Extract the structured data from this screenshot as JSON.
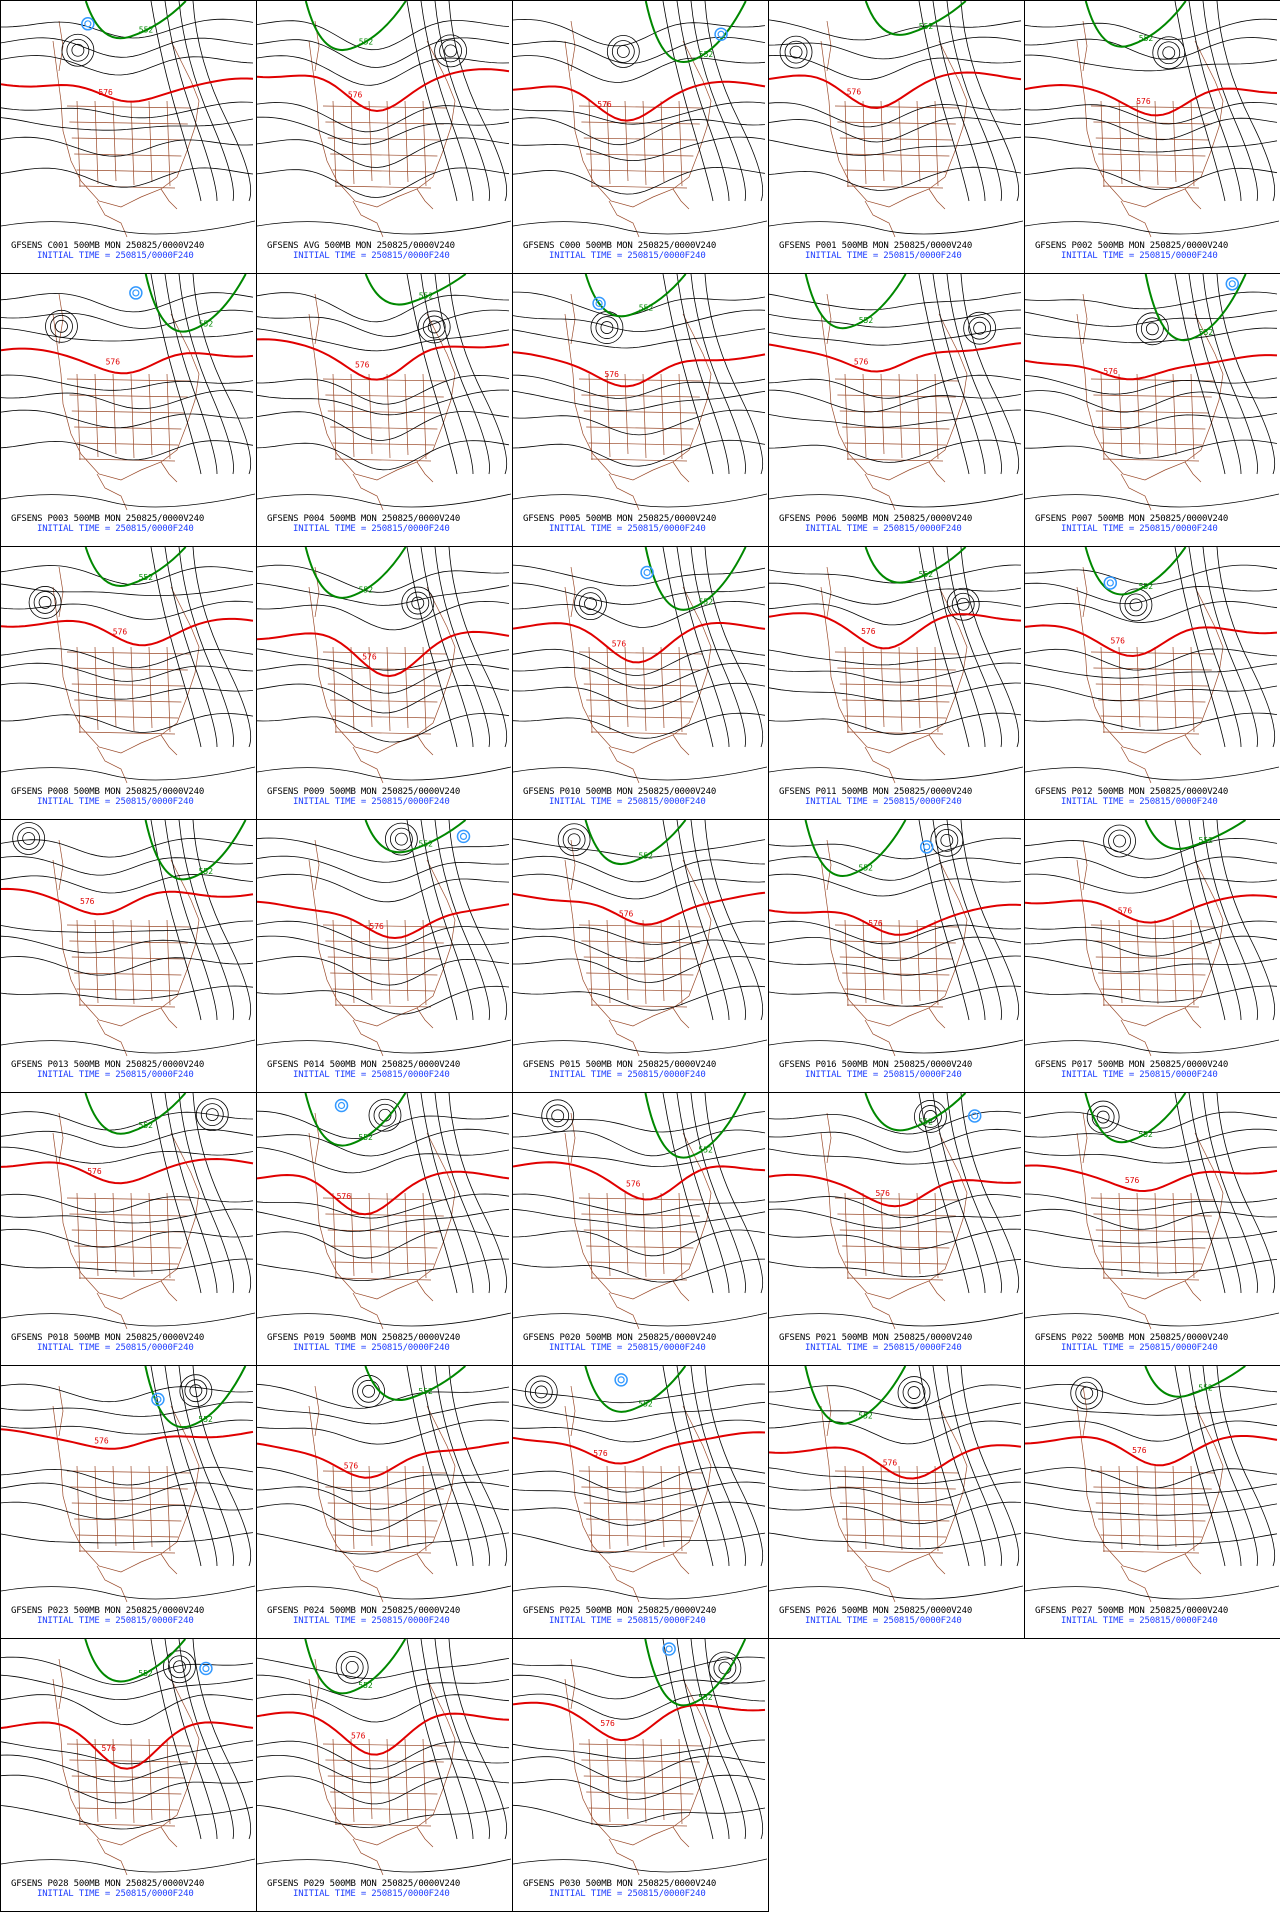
{
  "page": {
    "background": "#ffffff"
  },
  "colors": {
    "height_contour": "#000000",
    "contour_576": "#e00000",
    "contour_552": "#008800",
    "low_center": "#3399ff",
    "map_boundaries": "#9a4a2a",
    "caption_line1": "#000000",
    "caption_line2": "#1f3fff"
  },
  "contour_labels": {
    "red": "576",
    "green": "552"
  },
  "panels": [
    {
      "line1": "GFSENS C001 500MB MON 250825/0000V240",
      "line2": "INITIAL TIME = 250815/0000F240"
    },
    {
      "line1": "GFSENS AVG 500MB MON 250825/0000V240",
      "line2": "INITIAL TIME = 250815/0000F240"
    },
    {
      "line1": "GFSENS C000 500MB MON 250825/0000V240",
      "line2": "INITIAL TIME = 250815/0000F240"
    },
    {
      "line1": "GFSENS P001 500MB MON 250825/0000V240",
      "line2": "INITIAL TIME = 250815/0000F240"
    },
    {
      "line1": "GFSENS P002 500MB MON 250825/0000V240",
      "line2": "INITIAL TIME = 250815/0000F240"
    },
    {
      "line1": "GFSENS P003 500MB MON 250825/0000V240",
      "line2": "INITIAL TIME = 250815/0000F240"
    },
    {
      "line1": "GFSENS P004 500MB MON 250825/0000V240",
      "line2": "INITIAL TIME = 250815/0000F240"
    },
    {
      "line1": "GFSENS P005 500MB MON 250825/0000V240",
      "line2": "INITIAL TIME = 250815/0000F240"
    },
    {
      "line1": "GFSENS P006 500MB MON 250825/0000V240",
      "line2": "INITIAL TIME = 250815/0000F240"
    },
    {
      "line1": "GFSENS P007 500MB MON 250825/0000V240",
      "line2": "INITIAL TIME = 250815/0000F240"
    },
    {
      "line1": "GFSENS P008 500MB MON 250825/0000V240",
      "line2": "INITIAL TIME = 250815/0000F240"
    },
    {
      "line1": "GFSENS P009 500MB MON 250825/0000V240",
      "line2": "INITIAL TIME = 250815/0000F240"
    },
    {
      "line1": "GFSENS P010 500MB MON 250825/0000V240",
      "line2": "INITIAL TIME = 250815/0000F240"
    },
    {
      "line1": "GFSENS P011 500MB MON 250825/0000V240",
      "line2": "INITIAL TIME = 250815/0000F240"
    },
    {
      "line1": "GFSENS P012 500MB MON 250825/0000V240",
      "line2": "INITIAL TIME = 250815/0000F240"
    },
    {
      "line1": "GFSENS P013 500MB MON 250825/0000V240",
      "line2": "INITIAL TIME = 250815/0000F240"
    },
    {
      "line1": "GFSENS P014 500MB MON 250825/0000V240",
      "line2": "INITIAL TIME = 250815/0000F240"
    },
    {
      "line1": "GFSENS P015 500MB MON 250825/0000V240",
      "line2": "INITIAL TIME = 250815/0000F240"
    },
    {
      "line1": "GFSENS P016 500MB MON 250825/0000V240",
      "line2": "INITIAL TIME = 250815/0000F240"
    },
    {
      "line1": "GFSENS P017 500MB MON 250825/0000V240",
      "line2": "INITIAL TIME = 250815/0000F240"
    },
    {
      "line1": "GFSENS P018 500MB MON 250825/0000V240",
      "line2": "INITIAL TIME = 250815/0000F240"
    },
    {
      "line1": "GFSENS P019 500MB MON 250825/0000V240",
      "line2": "INITIAL TIME = 250815/0000F240"
    },
    {
      "line1": "GFSENS P020 500MB MON 250825/0000V240",
      "line2": "INITIAL TIME = 250815/0000F240"
    },
    {
      "line1": "GFSENS P021 500MB MON 250825/0000V240",
      "line2": "INITIAL TIME = 250815/0000F240"
    },
    {
      "line1": "GFSENS P022 500MB MON 250825/0000V240",
      "line2": "INITIAL TIME = 250815/0000F240"
    },
    {
      "line1": "GFSENS P023 500MB MON 250825/0000V240",
      "line2": "INITIAL TIME = 250815/0000F240"
    },
    {
      "line1": "GFSENS P024 500MB MON 250825/0000V240",
      "line2": "INITIAL TIME = 250815/0000F240"
    },
    {
      "line1": "GFSENS P025 500MB MON 250825/0000V240",
      "line2": "INITIAL TIME = 250815/0000F240"
    },
    {
      "line1": "GFSENS P026 500MB MON 250825/0000V240",
      "line2": "INITIAL TIME = 250815/0000F240"
    },
    {
      "line1": "GFSENS P027 500MB MON 250825/0000V240",
      "line2": "INITIAL TIME = 250815/0000F240"
    },
    {
      "line1": "GFSENS P028 500MB MON 250825/0000V240",
      "line2": "INITIAL TIME = 250815/0000F240"
    },
    {
      "line1": "GFSENS P029 500MB MON 250825/0000V240",
      "line2": "INITIAL TIME = 250815/0000F240"
    },
    {
      "line1": "GFSENS P030 500MB MON 250825/0000V240",
      "line2": "INITIAL TIME = 250815/0000F240"
    }
  ]
}
